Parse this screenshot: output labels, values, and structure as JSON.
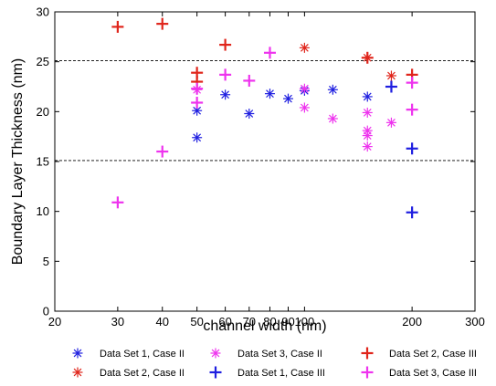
{
  "chart_data": {
    "type": "scatter",
    "title": "",
    "xlabel": "channel width (nm)",
    "ylabel": "Boundary Layer Thickness (nm)",
    "xscale": "log",
    "xlim": [
      20,
      300
    ],
    "ylim": [
      0,
      30
    ],
    "xticks": [
      20,
      30,
      40,
      50,
      60,
      70,
      80,
      90,
      100,
      200,
      300
    ],
    "xtick_labels": [
      "20",
      "30",
      "40",
      "50",
      "60",
      "70",
      "80",
      "90",
      "100",
      "200",
      "300"
    ],
    "yticks": [
      0,
      5,
      10,
      15,
      20,
      25,
      30
    ],
    "ytick_labels": [
      "0",
      "5",
      "10",
      "15",
      "20",
      "25",
      "30"
    ],
    "reference_lines": [
      {
        "y": 25.1,
        "style": "dashed"
      },
      {
        "y": 15.1,
        "style": "dashed"
      }
    ],
    "grid": false,
    "legend_position": "bottom",
    "series": [
      {
        "name": "Data Set 1, Case II",
        "marker": "asterisk",
        "color": "#1f1fe0",
        "points": [
          [
            50,
            20.1
          ],
          [
            50,
            17.4
          ],
          [
            60,
            21.7
          ],
          [
            70,
            19.8
          ],
          [
            80,
            21.8
          ],
          [
            90,
            21.3
          ],
          [
            100,
            22.1
          ],
          [
            120,
            22.2
          ],
          [
            150,
            21.5
          ]
        ]
      },
      {
        "name": "Data Set 2, Case II",
        "marker": "asterisk",
        "color": "#e0251b",
        "points": [
          [
            100,
            26.4
          ],
          [
            150,
            25.4
          ],
          [
            175,
            23.6
          ]
        ]
      },
      {
        "name": "Data Set 3, Case II",
        "marker": "asterisk",
        "color": "#ee33ee",
        "points": [
          [
            50,
            22.2
          ],
          [
            100,
            22.3
          ],
          [
            100,
            20.4
          ],
          [
            120,
            19.3
          ],
          [
            150,
            19.9
          ],
          [
            150,
            18.1
          ],
          [
            150,
            17.6
          ],
          [
            150,
            16.5
          ],
          [
            175,
            18.9
          ]
        ]
      },
      {
        "name": "Data Set 1, Case III",
        "marker": "plus",
        "color": "#1f1fe0",
        "points": [
          [
            175,
            22.5
          ],
          [
            200,
            16.3
          ],
          [
            200,
            9.9
          ]
        ]
      },
      {
        "name": "Data Set 2, Case III",
        "marker": "plus",
        "color": "#e0251b",
        "points": [
          [
            30,
            28.5
          ],
          [
            40,
            28.8
          ],
          [
            50,
            23.9
          ],
          [
            50,
            23.0
          ],
          [
            60,
            26.7
          ],
          [
            150,
            25.4
          ],
          [
            200,
            23.7
          ]
        ]
      },
      {
        "name": "Data Set 3, Case III",
        "marker": "plus",
        "color": "#ee33ee",
        "points": [
          [
            30,
            10.9
          ],
          [
            40,
            16.0
          ],
          [
            50,
            22.3
          ],
          [
            50,
            20.9
          ],
          [
            60,
            23.7
          ],
          [
            70,
            23.1
          ],
          [
            80,
            25.9
          ],
          [
            200,
            22.9
          ],
          [
            200,
            20.2
          ]
        ]
      }
    ]
  }
}
